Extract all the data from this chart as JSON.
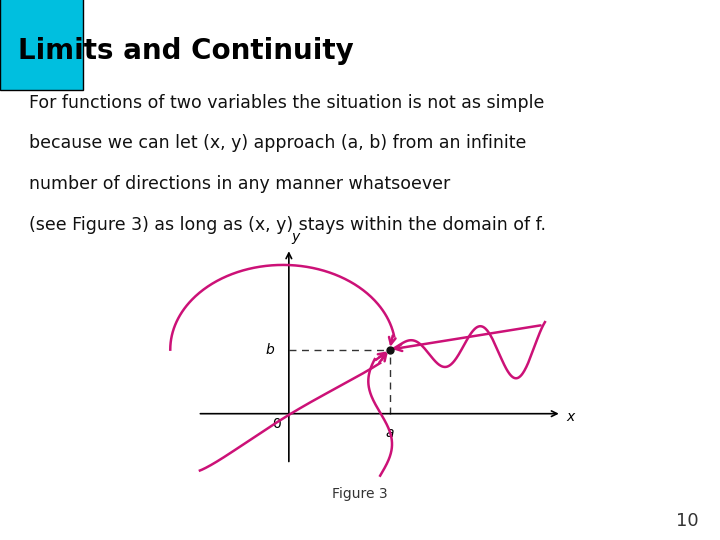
{
  "title": "Limits and Continuity",
  "title_color": "#000000",
  "title_bg_color": "#FAF5DC",
  "title_square_color": "#00BFDF",
  "body_text_line1": "For functions of two variables the situation is not as simple",
  "body_text_line2": "because we can let (x, y) approach (a, b) from an infinite",
  "body_text_line3": "number of directions in any manner whatsoever",
  "body_text_line4": "(see Figure 3) as long as (x, y) stays within the domain of f.",
  "figure_label": "Figure 3",
  "slide_number": "10",
  "curve_color": "#CC1177",
  "axis_color": "#000000",
  "dashed_color": "#333333",
  "background_color": "#FFFFFF",
  "font_size_title": 20,
  "font_size_body": 12.5,
  "font_size_fig": 10,
  "font_size_slide": 13
}
